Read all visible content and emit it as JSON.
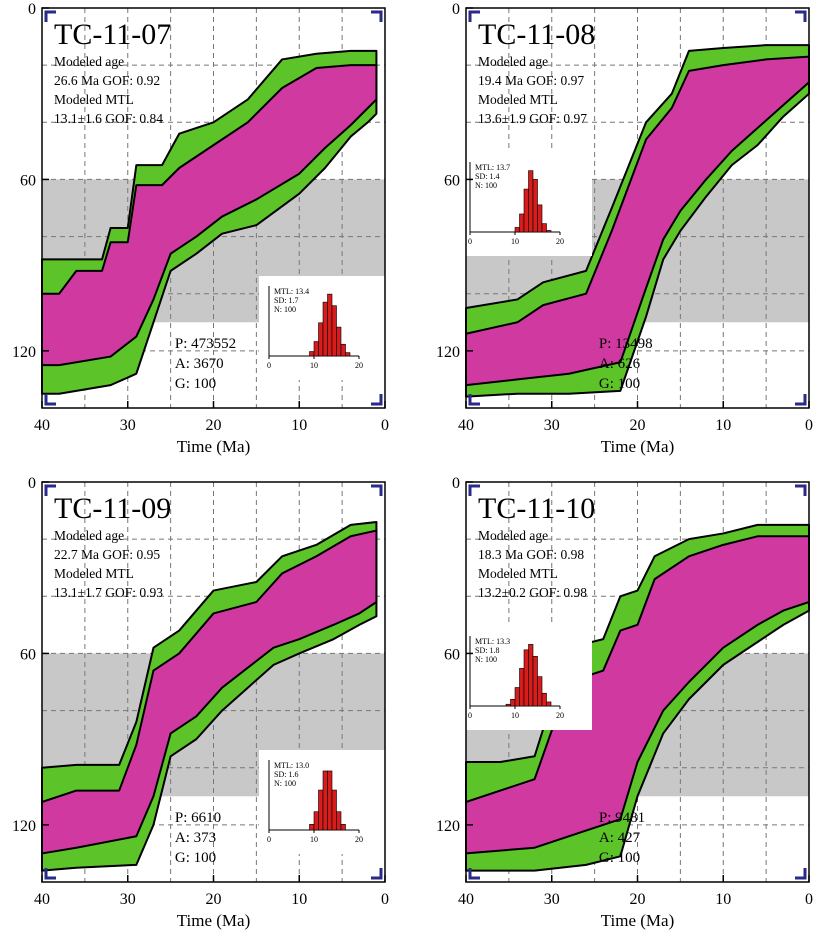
{
  "figure": {
    "x_axis_label": "Time (Ma)",
    "panels": [
      {
        "sample": "TC-11-07",
        "modeled_age_label": "Modeled age",
        "modeled_age_line": "26.6 Ma GOF: 0.92",
        "modeled_mtl_label": "Modeled MTL",
        "modeled_mtl_line": "13.1±1.6 GOF: 0.84",
        "p_line": "P: 473552",
        "a_line": "A: 3670",
        "g_line": "G: 100",
        "hist": {
          "mtl": "MTL: 13.4",
          "sd": "SD: 1.7",
          "n": "N: 100"
        },
        "hist_pos": "lower-right"
      },
      {
        "sample": "TC-11-08",
        "modeled_age_label": "Modeled age",
        "modeled_age_line": "19.4 Ma GOF: 0.97",
        "modeled_mtl_label": "Modeled MTL",
        "modeled_mtl_line": "13.6±1.9 GOF: 0.97",
        "p_line": "P: 13498",
        "a_line": "A: 626",
        "g_line": "G: 100",
        "hist": {
          "mtl": "MTL: 13.7",
          "sd": "SD: 1.4",
          "n": "N: 100"
        },
        "hist_pos": "upper-left"
      },
      {
        "sample": "TC-11-09",
        "modeled_age_label": "Modeled age",
        "modeled_age_line": "22.7 Ma GOF: 0.95",
        "modeled_mtl_label": "Modeled MTL",
        "modeled_mtl_line": "13.1±1.7 GOF: 0.93",
        "p_line": "P: 6610",
        "a_line": "A: 373",
        "g_line": "G: 100",
        "hist": {
          "mtl": "MTL: 13.0",
          "sd": "SD: 1.6",
          "n": "N: 100"
        },
        "hist_pos": "lower-right"
      },
      {
        "sample": "TC-11-10",
        "modeled_age_label": "Modeled age",
        "modeled_age_line": "18.3 Ma GOF: 0.98",
        "modeled_mtl_label": "Modeled MTL",
        "modeled_mtl_line": "13.2±0.2 GOF: 0.98",
        "p_line": "P: 9481",
        "a_line": "A: 427",
        "g_line": "G: 100",
        "hist": {
          "mtl": "MTL: 13.3",
          "sd": "SD: 1.8",
          "n": "N: 100"
        },
        "hist_pos": "upper-left"
      }
    ]
  },
  "chart_data": [
    {
      "type": "area",
      "title": "TC-11-07",
      "xlabel": "Time (Ma)",
      "ylabel": "",
      "xlim": [
        40,
        0
      ],
      "ylim": [
        0,
        140
      ],
      "xticks": [
        40,
        30,
        20,
        10,
        0
      ],
      "yticks": [
        0,
        60,
        120
      ],
      "grid": true,
      "shaded_band_temperature_range": [
        60,
        110
      ],
      "colors": {
        "acceptable": "#5cc428",
        "good": "#d03aa0",
        "band": "#c8c8c8"
      },
      "series": [
        {
          "name": "acceptable envelope",
          "x_top": [
            40,
            38,
            36,
            33,
            32,
            30,
            29,
            26,
            24,
            20,
            16,
            12,
            8,
            4,
            1
          ],
          "y_top": [
            88,
            88,
            88,
            88,
            77,
            77,
            55,
            55,
            44,
            40,
            32,
            18,
            16,
            15,
            15
          ],
          "x_bottom": [
            40,
            38,
            32,
            29,
            27,
            25,
            22,
            19,
            15,
            10,
            7,
            4,
            2,
            1
          ],
          "y_bottom": [
            135,
            135,
            132,
            128,
            110,
            92,
            86,
            79,
            76,
            65,
            56,
            45,
            40,
            37
          ]
        },
        {
          "name": "good envelope",
          "x_top": [
            40,
            38,
            36,
            33,
            32,
            30,
            29,
            26,
            24,
            20,
            16,
            12,
            8,
            4,
            1
          ],
          "y_top": [
            100,
            100,
            92,
            92,
            82,
            82,
            62,
            62,
            56,
            48,
            40,
            28,
            21,
            20,
            20
          ],
          "x_bottom": [
            40,
            38,
            32,
            29,
            27,
            25,
            22,
            19,
            15,
            10,
            7,
            4,
            2,
            1
          ],
          "y_bottom": [
            125,
            125,
            122,
            115,
            102,
            86,
            80,
            73,
            67,
            58,
            49,
            41,
            35,
            32
          ]
        }
      ],
      "inset_histogram": {
        "xlim": [
          0,
          20
        ],
        "xticks": [
          0,
          10,
          20
        ],
        "mtl": 13.4,
        "sd": 1.7,
        "n": 100
      }
    },
    {
      "type": "area",
      "title": "TC-11-08",
      "xlabel": "Time (Ma)",
      "ylabel": "",
      "xlim": [
        40,
        0
      ],
      "ylim": [
        0,
        140
      ],
      "xticks": [
        40,
        30,
        20,
        10,
        0
      ],
      "yticks": [
        0,
        60,
        120
      ],
      "grid": true,
      "shaded_band_temperature_range": [
        60,
        110
      ],
      "colors": {
        "acceptable": "#5cc428",
        "good": "#d03aa0",
        "band": "#c8c8c8"
      },
      "series": [
        {
          "name": "acceptable envelope",
          "x_top": [
            40,
            34,
            31,
            26,
            23,
            21,
            19,
            16,
            14,
            10,
            5,
            0
          ],
          "y_top": [
            105,
            102,
            96,
            92,
            70,
            55,
            40,
            30,
            15,
            14,
            13,
            13
          ],
          "x_bottom": [
            40,
            34,
            28,
            22,
            19,
            17,
            15,
            12,
            9,
            6,
            3,
            0
          ],
          "y_bottom": [
            136,
            135,
            135,
            134,
            108,
            88,
            78,
            66,
            55,
            48,
            38,
            30
          ]
        },
        {
          "name": "good envelope",
          "x_top": [
            40,
            34,
            31,
            26,
            23,
            21,
            19,
            16,
            14,
            10,
            5,
            0
          ],
          "y_top": [
            114,
            110,
            104,
            100,
            78,
            62,
            46,
            35,
            22,
            20,
            18,
            17
          ],
          "x_bottom": [
            40,
            34,
            28,
            22,
            19,
            17,
            15,
            12,
            9,
            6,
            3,
            0
          ],
          "y_bottom": [
            132,
            130,
            128,
            124,
            98,
            81,
            71,
            60,
            50,
            42,
            34,
            26
          ]
        }
      ],
      "inset_histogram": {
        "xlim": [
          0,
          20
        ],
        "xticks": [
          0,
          10,
          20
        ],
        "mtl": 13.7,
        "sd": 1.4,
        "n": 100
      }
    },
    {
      "type": "area",
      "title": "TC-11-09",
      "xlabel": "Time (Ma)",
      "ylabel": "",
      "xlim": [
        40,
        0
      ],
      "ylim": [
        0,
        140
      ],
      "xticks": [
        40,
        30,
        20,
        10,
        0
      ],
      "yticks": [
        0,
        60,
        120
      ],
      "grid": true,
      "shaded_band_temperature_range": [
        60,
        110
      ],
      "colors": {
        "acceptable": "#5cc428",
        "good": "#d03aa0",
        "band": "#c8c8c8"
      },
      "series": [
        {
          "name": "acceptable envelope",
          "x_top": [
            40,
            36,
            31,
            29,
            27,
            24,
            20,
            15,
            12,
            8,
            4,
            1
          ],
          "y_top": [
            100,
            99,
            99,
            84,
            58,
            52,
            38,
            35,
            26,
            22,
            15,
            14
          ],
          "x_bottom": [
            40,
            36,
            29,
            27,
            25,
            22,
            19,
            16,
            13,
            10,
            6,
            3,
            1
          ],
          "y_bottom": [
            136,
            135,
            134,
            120,
            96,
            90,
            80,
            72,
            64,
            60,
            55,
            50,
            47
          ]
        },
        {
          "name": "good envelope",
          "x_top": [
            40,
            36,
            31,
            29,
            27,
            24,
            20,
            15,
            12,
            8,
            4,
            1
          ],
          "y_top": [
            112,
            108,
            108,
            92,
            66,
            60,
            46,
            42,
            32,
            26,
            19,
            17
          ],
          "x_bottom": [
            40,
            36,
            29,
            27,
            25,
            22,
            19,
            16,
            13,
            10,
            6,
            3,
            1
          ],
          "y_bottom": [
            130,
            128,
            124,
            110,
            88,
            82,
            72,
            65,
            58,
            55,
            50,
            46,
            42
          ]
        }
      ],
      "inset_histogram": {
        "xlim": [
          0,
          20
        ],
        "xticks": [
          0,
          10,
          20
        ],
        "mtl": 13.0,
        "sd": 1.6,
        "n": 100
      }
    },
    {
      "type": "area",
      "title": "TC-11-10",
      "xlabel": "Time (Ma)",
      "ylabel": "",
      "xlim": [
        40,
        0
      ],
      "ylim": [
        0,
        140
      ],
      "xticks": [
        40,
        30,
        20,
        10,
        0
      ],
      "yticks": [
        0,
        60,
        120
      ],
      "grid": true,
      "shaded_band_temperature_range": [
        60,
        110
      ],
      "colors": {
        "acceptable": "#5cc428",
        "good": "#d03aa0",
        "band": "#c8c8c8"
      },
      "series": [
        {
          "name": "acceptable envelope",
          "x_top": [
            40,
            36,
            32,
            28,
            24,
            22,
            20,
            18,
            14,
            10,
            6,
            0
          ],
          "y_top": [
            98,
            98,
            96,
            58,
            55,
            40,
            38,
            26,
            20,
            18,
            15,
            15
          ],
          "x_bottom": [
            40,
            32,
            26,
            22,
            20,
            17,
            14,
            10,
            6,
            3,
            0
          ],
          "y_bottom": [
            136,
            136,
            134,
            131,
            110,
            88,
            76,
            64,
            56,
            50,
            45
          ]
        },
        {
          "name": "good envelope",
          "x_top": [
            40,
            36,
            32,
            28,
            24,
            22,
            20,
            18,
            14,
            10,
            6,
            0
          ],
          "y_top": [
            112,
            108,
            104,
            70,
            66,
            52,
            50,
            34,
            26,
            22,
            19,
            19
          ],
          "x_bottom": [
            40,
            32,
            26,
            22,
            20,
            17,
            14,
            10,
            6,
            3,
            0
          ],
          "y_bottom": [
            130,
            128,
            122,
            118,
            98,
            80,
            70,
            58,
            50,
            45,
            42
          ]
        }
      ],
      "inset_histogram": {
        "xlim": [
          0,
          20
        ],
        "xticks": [
          0,
          10,
          20
        ],
        "mtl": 13.3,
        "sd": 1.8,
        "n": 100
      }
    }
  ]
}
